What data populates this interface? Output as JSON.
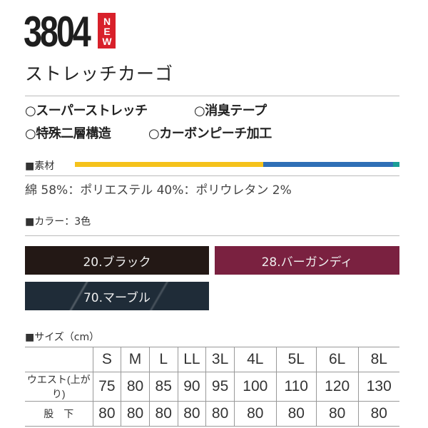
{
  "product": {
    "code": "3804",
    "badge": "NEW",
    "name": "ストレッチカーゴ"
  },
  "features": [
    "○スーパーストレッチ",
    "○消臭テープ",
    "○特殊二層構造",
    "○カーボンピーチ加工"
  ],
  "material": {
    "label": "■素材",
    "composition": "綿 58%：ポリエステル 40%：ポリウレタン 2%",
    "bar": [
      {
        "percent": 58,
        "color": "#f5c21b"
      },
      {
        "percent": 40,
        "color": "#2f6fb6"
      },
      {
        "percent": 2,
        "color": "#1a9e96"
      }
    ]
  },
  "colors": {
    "label": "■カラー：3色",
    "items": [
      {
        "label": "20.ブラック",
        "color": "#231815"
      },
      {
        "label": "28.バーガンディ",
        "color": "#7a2140"
      },
      {
        "label": "70.マーブル",
        "color": "#1f2c38"
      }
    ]
  },
  "sizes": {
    "label": "■サイズ（cm）",
    "headers": [
      "S",
      "M",
      "L",
      "LL",
      "3L",
      "4L",
      "5L",
      "6L",
      "8L"
    ],
    "rows": [
      {
        "label": "ウエスト(上がり)",
        "values": [
          "75",
          "80",
          "85",
          "90",
          "95",
          "100",
          "110",
          "120",
          "130"
        ]
      },
      {
        "label": "股　下",
        "values": [
          "80",
          "80",
          "80",
          "80",
          "80",
          "80",
          "80",
          "80",
          "80"
        ]
      }
    ]
  }
}
